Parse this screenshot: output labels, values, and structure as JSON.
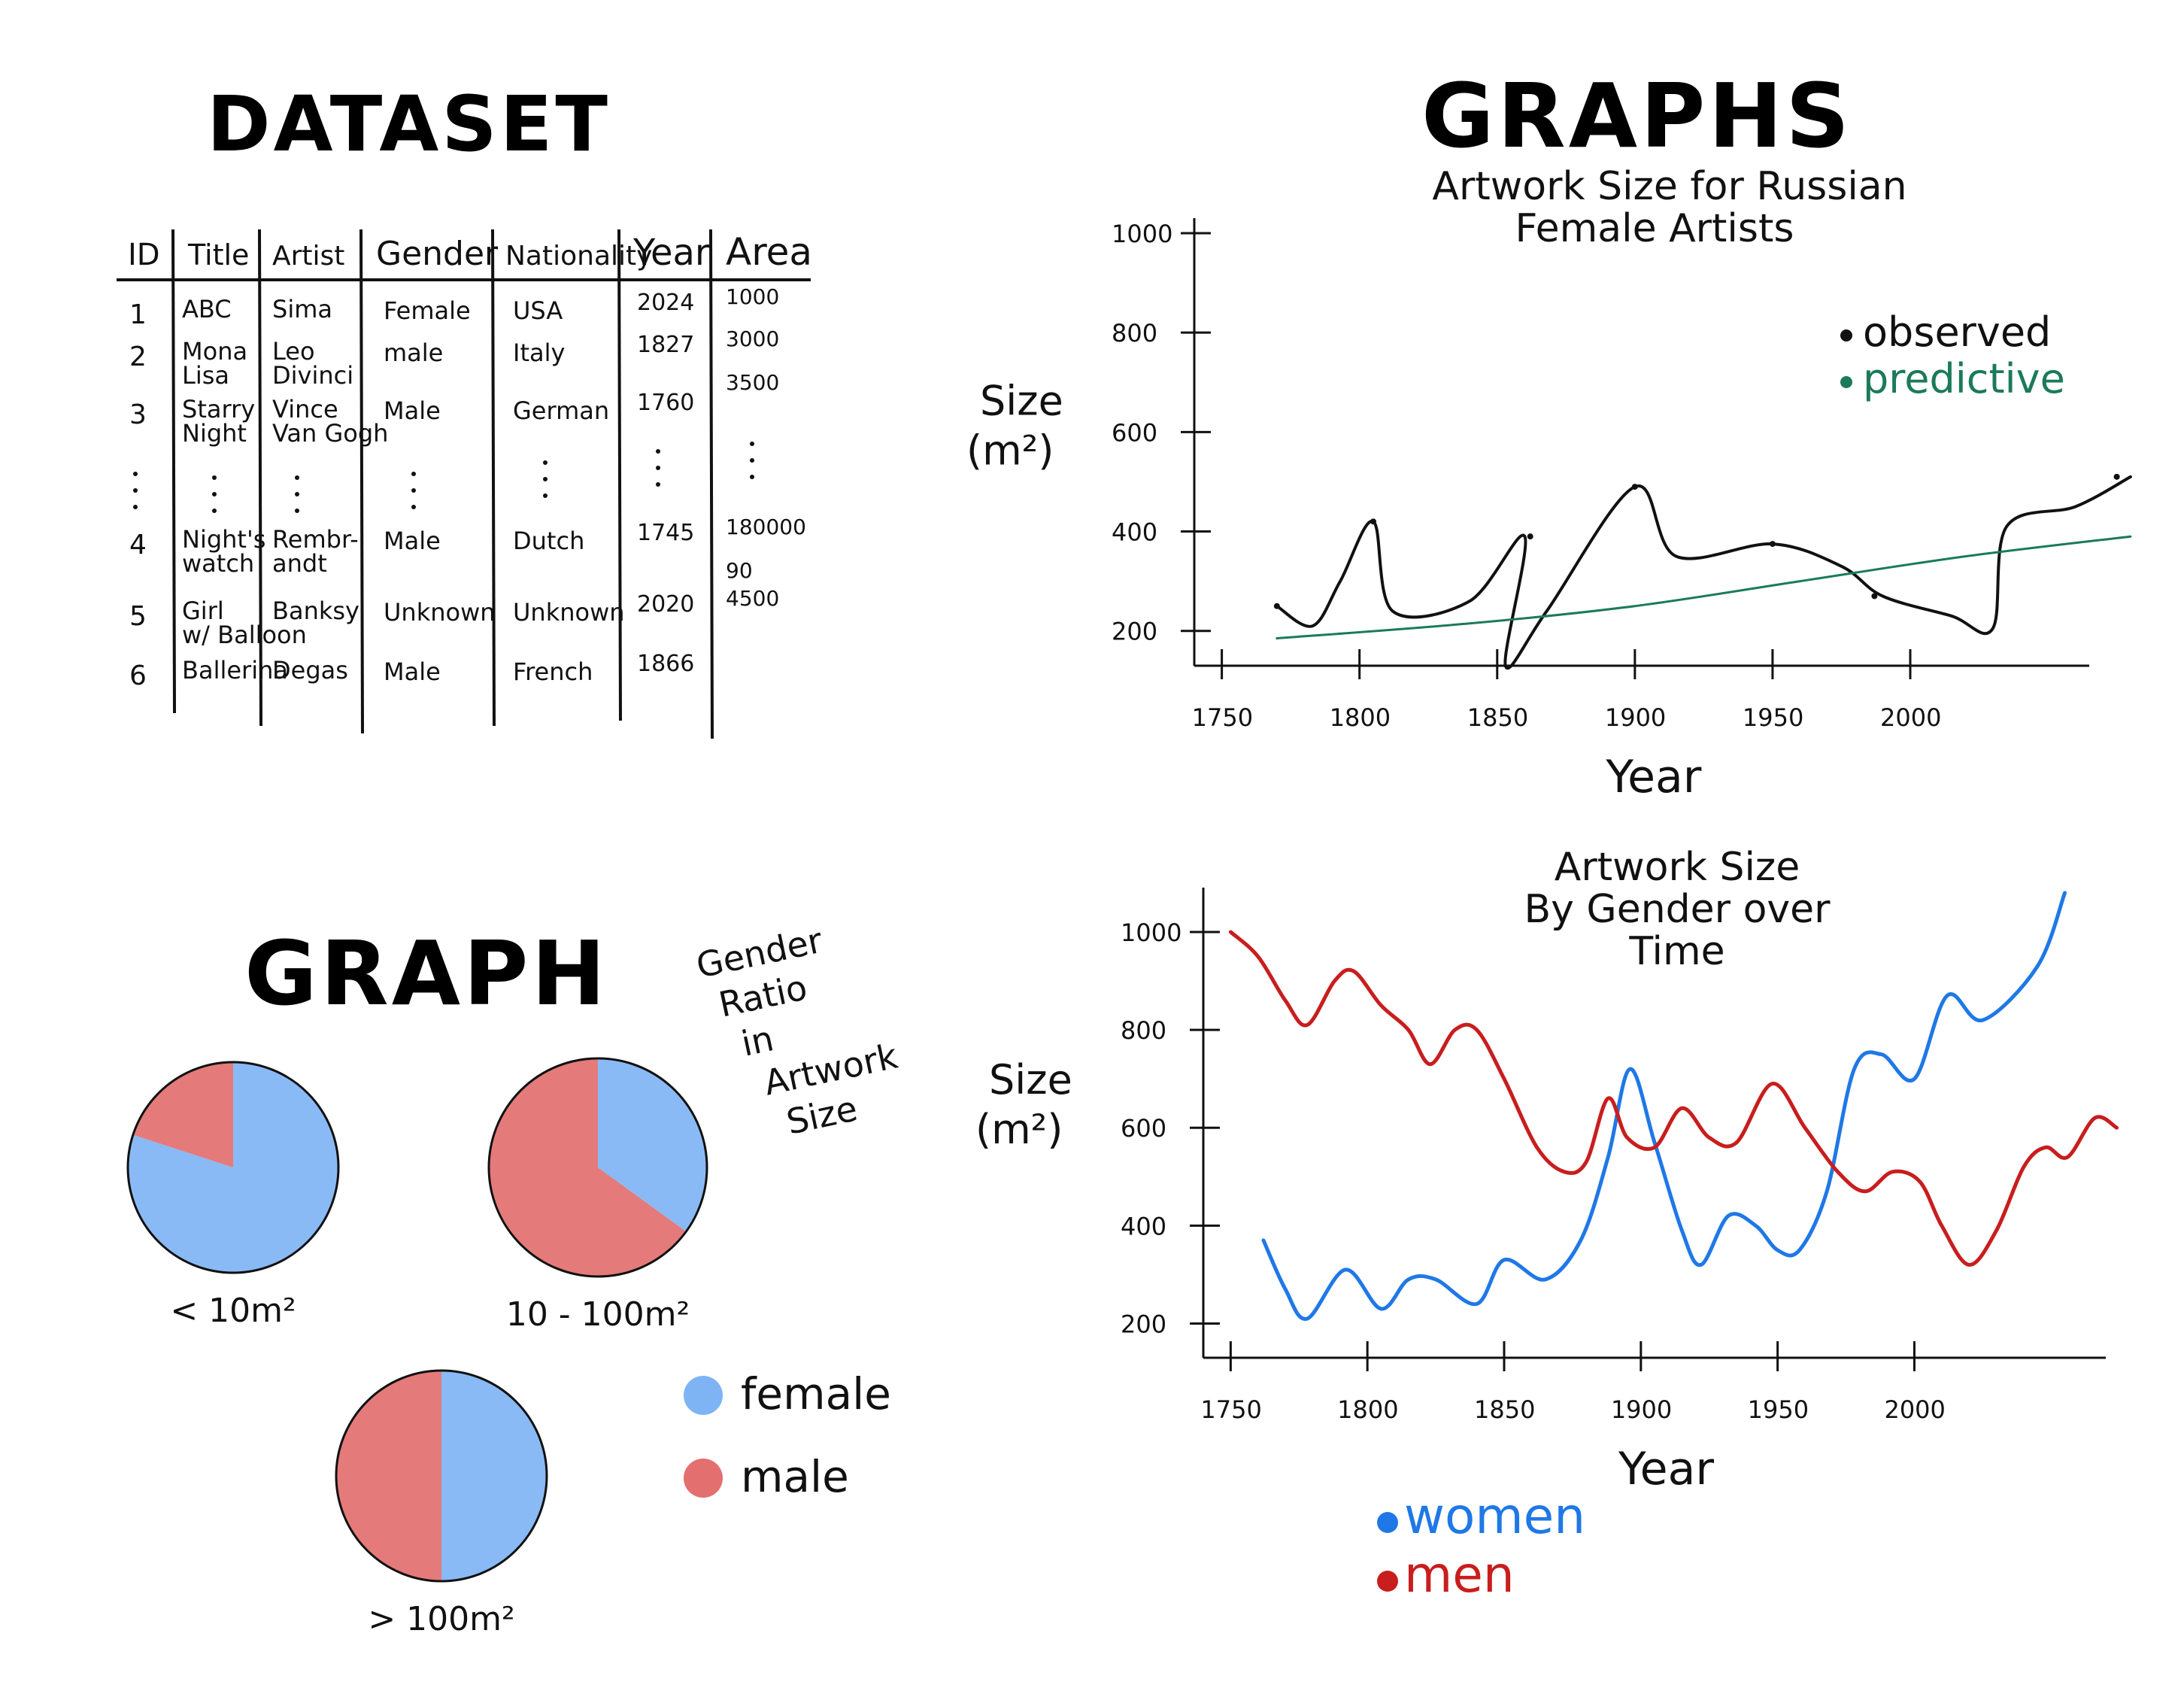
{
  "colors": {
    "ink": "#111111",
    "green": "#1b7a5a",
    "female": "#7fb4f4",
    "male": "#e36f6f",
    "women": "#1f78e6",
    "men": "#c81e1e"
  },
  "dataset": {
    "heading": "DATASET",
    "columns": [
      "ID",
      "Title",
      "Artist",
      "Gender",
      "Nationality",
      "Year",
      "Area"
    ],
    "rows": [
      {
        "id": "1",
        "title": [
          "ABC"
        ],
        "artist": [
          "Sima"
        ],
        "gender": "Female",
        "nationality": "USA",
        "year": "2024",
        "area": [
          "1000"
        ]
      },
      {
        "id": "2",
        "title": [
          "Mona",
          "Lisa"
        ],
        "artist": [
          "Leo",
          "Divinci"
        ],
        "gender": "male",
        "nationality": "Italy",
        "year": "1827",
        "area": [
          "3000",
          "3500"
        ]
      },
      {
        "id": "3",
        "title": [
          "Starry",
          "Night"
        ],
        "artist": [
          "Vince",
          "Van Gogh"
        ],
        "gender": "Male",
        "nationality": "German",
        "year": "1760",
        "area": []
      },
      {
        "id": "4",
        "title": [
          "Night's",
          "watch"
        ],
        "artist": [
          "Rembr-",
          "andt"
        ],
        "gender": "Male",
        "nationality": "Dutch",
        "year": "1745",
        "area": [
          "180000",
          "90"
        ]
      },
      {
        "id": "5",
        "title": [
          "Girl",
          "w/ Balloon"
        ],
        "artist": [
          "Banksy"
        ],
        "gender": "Unknown",
        "nationality": "Unknown",
        "year": "2020",
        "area": [
          "4500"
        ]
      },
      {
        "id": "6",
        "title": [
          "Ballerina"
        ],
        "artist": [
          "Degas"
        ],
        "gender": "Male",
        "nationality": "French",
        "year": "1866",
        "area": []
      }
    ]
  },
  "graph_heading": "GRAPH",
  "graphs_heading": "GRAPHS",
  "chart_data": [
    {
      "type": "line",
      "title": [
        "Artwork Size for Russian",
        "Female Artists"
      ],
      "xlabel": "Year",
      "ylabel": [
        "Size",
        "(m²)"
      ],
      "xlim": [
        1740,
        2065
      ],
      "ylim": [
        130,
        1000
      ],
      "x_ticks": [
        1750,
        1800,
        1850,
        1900,
        1950,
        2000
      ],
      "y_ticks": [
        200,
        400,
        600,
        800,
        1000
      ],
      "legend": {
        "position": "top-right"
      },
      "series": [
        {
          "name": "observed",
          "color": "#111111",
          "points": [
            [
              1770,
              250
            ],
            [
              1783,
              210
            ],
            [
              1793,
              300
            ],
            [
              1805,
              420
            ],
            [
              1812,
              240
            ],
            [
              1840,
              260
            ],
            [
              1860,
              390
            ],
            [
              1853,
              130
            ],
            [
              1868,
              240
            ],
            [
              1900,
              490
            ],
            [
              1915,
              350
            ],
            [
              1950,
              375
            ],
            [
              1975,
              330
            ],
            [
              1990,
              270
            ],
            [
              2015,
              230
            ],
            [
              2030,
              205
            ],
            [
              2035,
              410
            ],
            [
              2060,
              450
            ],
            [
              2080,
              510
            ]
          ],
          "markers": [
            [
              1770,
              250
            ],
            [
              1805,
              420
            ],
            [
              1862,
              390
            ],
            [
              1900,
              490
            ],
            [
              1950,
              375
            ],
            [
              1987,
              270
            ],
            [
              2075,
              510
            ]
          ]
        },
        {
          "name": "predictive",
          "color": "#1b7a5a",
          "points": [
            [
              1770,
              185
            ],
            [
              1840,
              215
            ],
            [
              1900,
              250
            ],
            [
              1960,
              300
            ],
            [
              2020,
              350
            ],
            [
              2080,
              390
            ]
          ]
        }
      ]
    },
    {
      "type": "pie",
      "title": [
        "Gender",
        "Ratio",
        "in",
        "Artwork",
        "Size"
      ],
      "legend": [
        {
          "label": "female",
          "color": "#7fb4f4"
        },
        {
          "label": "male",
          "color": "#e36f6f"
        }
      ],
      "pies": [
        {
          "label": "< 10m²",
          "slices": [
            {
              "name": "female",
              "value": 0.8
            },
            {
              "name": "male",
              "value": 0.2
            }
          ]
        },
        {
          "label": "10 - 100m²",
          "slices": [
            {
              "name": "female",
              "value": 0.35
            },
            {
              "name": "male",
              "value": 0.65
            }
          ]
        },
        {
          "label": "> 100m²",
          "slices": [
            {
              "name": "female",
              "value": 0.5
            },
            {
              "name": "male",
              "value": 0.5
            }
          ]
        }
      ]
    },
    {
      "type": "line",
      "title": [
        "Artwork Size",
        "By Gender over",
        "Time"
      ],
      "xlabel": "Year",
      "ylabel": [
        "Size",
        "(m²)"
      ],
      "xlim": [
        1740,
        2070
      ],
      "ylim": [
        130,
        1060
      ],
      "x_ticks": [
        1750,
        1800,
        1850,
        1900,
        1950,
        2000
      ],
      "y_ticks": [
        200,
        400,
        600,
        800,
        1000
      ],
      "legend": {
        "position": "bottom-left"
      },
      "series": [
        {
          "name": "women",
          "color": "#1f78e6",
          "points": [
            [
              1762,
              370
            ],
            [
              1770,
              270
            ],
            [
              1778,
              210
            ],
            [
              1792,
              310
            ],
            [
              1805,
              230
            ],
            [
              1815,
              290
            ],
            [
              1825,
              290
            ],
            [
              1840,
              240
            ],
            [
              1850,
              330
            ],
            [
              1865,
              290
            ],
            [
              1878,
              370
            ],
            [
              1888,
              540
            ],
            [
              1896,
              720
            ],
            [
              1905,
              570
            ],
            [
              1915,
              390
            ],
            [
              1922,
              320
            ],
            [
              1932,
              420
            ],
            [
              1942,
              400
            ],
            [
              1950,
              350
            ],
            [
              1958,
              350
            ],
            [
              1968,
              470
            ],
            [
              1978,
              720
            ],
            [
              1988,
              750
            ],
            [
              2000,
              700
            ],
            [
              2012,
              870
            ],
            [
              2025,
              820
            ],
            [
              2045,
              930
            ],
            [
              2055,
              1080
            ]
          ]
        },
        {
          "name": "men",
          "color": "#c81e1e",
          "points": [
            [
              1750,
              1000
            ],
            [
              1760,
              950
            ],
            [
              1770,
              860
            ],
            [
              1778,
              810
            ],
            [
              1788,
              900
            ],
            [
              1795,
              920
            ],
            [
              1805,
              850
            ],
            [
              1815,
              800
            ],
            [
              1823,
              730
            ],
            [
              1832,
              800
            ],
            [
              1840,
              800
            ],
            [
              1850,
              700
            ],
            [
              1862,
              560
            ],
            [
              1872,
              510
            ],
            [
              1880,
              530
            ],
            [
              1888,
              660
            ],
            [
              1895,
              580
            ],
            [
              1905,
              560
            ],
            [
              1915,
              640
            ],
            [
              1925,
              580
            ],
            [
              1935,
              570
            ],
            [
              1948,
              690
            ],
            [
              1960,
              600
            ],
            [
              1972,
              510
            ],
            [
              1982,
              470
            ],
            [
              1992,
              510
            ],
            [
              2002,
              490
            ],
            [
              2010,
              400
            ],
            [
              2020,
              320
            ],
            [
              2030,
              390
            ],
            [
              2040,
              520
            ],
            [
              2048,
              560
            ],
            [
              2056,
              540
            ],
            [
              2066,
              620
            ],
            [
              2074,
              600
            ]
          ]
        }
      ]
    }
  ]
}
